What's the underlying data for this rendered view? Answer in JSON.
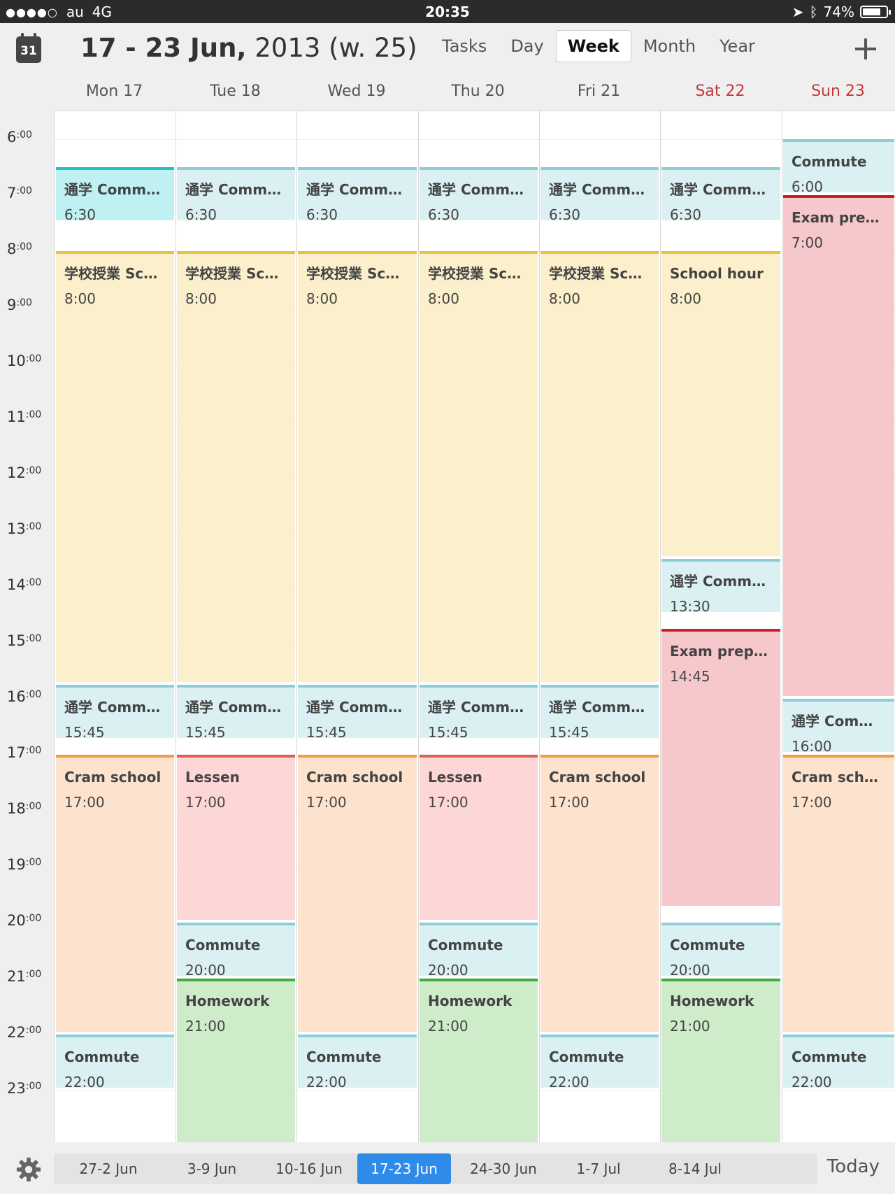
{
  "status_bar": {
    "carrier": "au",
    "network": "4G",
    "time": "20:35",
    "battery": "74%",
    "battery_level": 0.74
  },
  "header": {
    "calendar_icon_day": "31",
    "title_bold": "17 - 23 Jun,",
    "title_rest": " 2013 (w. 25)",
    "views": [
      "Tasks",
      "Day",
      "Week",
      "Month",
      "Year"
    ],
    "active_view": "Week"
  },
  "days": [
    {
      "label": "Mon 17",
      "weekend": false
    },
    {
      "label": "Tue 18",
      "weekend": false
    },
    {
      "label": "Wed 19",
      "weekend": false
    },
    {
      "label": "Thu 20",
      "weekend": false
    },
    {
      "label": "Fri 21",
      "weekend": false
    },
    {
      "label": "Sat 22",
      "weekend": true
    },
    {
      "label": "Sun 23",
      "weekend": true
    }
  ],
  "hours": [
    "6",
    "7",
    "8",
    "9",
    "10",
    "11",
    "12",
    "13",
    "14",
    "15",
    "16",
    "17",
    "18",
    "19",
    "20",
    "21",
    "22",
    "23"
  ],
  "hour_suffix": ":00",
  "events": [
    {
      "day": 0,
      "start": 6.5,
      "end": 7.5,
      "title": "通学 Commute",
      "time": "6:30",
      "kind": "commute-a"
    },
    {
      "day": 0,
      "start": 8,
      "end": 15.75,
      "title": "学校授業 Sch...",
      "time": "8:00",
      "kind": "school"
    },
    {
      "day": 0,
      "start": 15.75,
      "end": 16.75,
      "title": "通学 Commute",
      "time": "15:45",
      "kind": "commute"
    },
    {
      "day": 0,
      "start": 17,
      "end": 22,
      "title": "Cram school",
      "time": "17:00",
      "kind": "cram"
    },
    {
      "day": 0,
      "start": 22,
      "end": 23,
      "title": "Commute",
      "time": "22:00",
      "kind": "commute"
    },
    {
      "day": 1,
      "start": 6.5,
      "end": 7.5,
      "title": "通学 Commute",
      "time": "6:30",
      "kind": "commute"
    },
    {
      "day": 1,
      "start": 8,
      "end": 15.75,
      "title": "学校授業 Sch...",
      "time": "8:00",
      "kind": "school"
    },
    {
      "day": 1,
      "start": 15.75,
      "end": 16.75,
      "title": "通学 Commute",
      "time": "15:45",
      "kind": "commute"
    },
    {
      "day": 1,
      "start": 17,
      "end": 20,
      "title": "Lessen",
      "time": "17:00",
      "kind": "lessen"
    },
    {
      "day": 1,
      "start": 20,
      "end": 21,
      "title": "Commute",
      "time": "20:00",
      "kind": "commute"
    },
    {
      "day": 1,
      "start": 21,
      "end": 24,
      "title": "Homework",
      "time": "21:00",
      "kind": "homework"
    },
    {
      "day": 2,
      "start": 6.5,
      "end": 7.5,
      "title": "通学 Commute",
      "time": "6:30",
      "kind": "commute"
    },
    {
      "day": 2,
      "start": 8,
      "end": 15.75,
      "title": "学校授業 Sch...",
      "time": "8:00",
      "kind": "school"
    },
    {
      "day": 2,
      "start": 15.75,
      "end": 16.75,
      "title": "通学 Commute",
      "time": "15:45",
      "kind": "commute"
    },
    {
      "day": 2,
      "start": 17,
      "end": 22,
      "title": "Cram school",
      "time": "17:00",
      "kind": "cram"
    },
    {
      "day": 2,
      "start": 22,
      "end": 23,
      "title": "Commute",
      "time": "22:00",
      "kind": "commute"
    },
    {
      "day": 3,
      "start": 6.5,
      "end": 7.5,
      "title": "通学 Commute",
      "time": "6:30",
      "kind": "commute"
    },
    {
      "day": 3,
      "start": 8,
      "end": 15.75,
      "title": "学校授業 Sch...",
      "time": "8:00",
      "kind": "school"
    },
    {
      "day": 3,
      "start": 15.75,
      "end": 16.75,
      "title": "通学 Commute",
      "time": "15:45",
      "kind": "commute"
    },
    {
      "day": 3,
      "start": 17,
      "end": 20,
      "title": "Lessen",
      "time": "17:00",
      "kind": "lessen"
    },
    {
      "day": 3,
      "start": 20,
      "end": 21,
      "title": "Commute",
      "time": "20:00",
      "kind": "commute"
    },
    {
      "day": 3,
      "start": 21,
      "end": 24,
      "title": "Homework",
      "time": "21:00",
      "kind": "homework"
    },
    {
      "day": 4,
      "start": 6.5,
      "end": 7.5,
      "title": "通学 Commute",
      "time": "6:30",
      "kind": "commute"
    },
    {
      "day": 4,
      "start": 8,
      "end": 15.75,
      "title": "学校授業 Sch...",
      "time": "8:00",
      "kind": "school"
    },
    {
      "day": 4,
      "start": 15.75,
      "end": 16.75,
      "title": "通学 Commute",
      "time": "15:45",
      "kind": "commute"
    },
    {
      "day": 4,
      "start": 17,
      "end": 22,
      "title": "Cram school",
      "time": "17:00",
      "kind": "cram"
    },
    {
      "day": 4,
      "start": 22,
      "end": 23,
      "title": "Commute",
      "time": "22:00",
      "kind": "commute"
    },
    {
      "day": 5,
      "start": 6.5,
      "end": 7.5,
      "title": "通学 Commute",
      "time": "6:30",
      "kind": "commute"
    },
    {
      "day": 5,
      "start": 8,
      "end": 13.5,
      "title": "School hour",
      "time": "8:00",
      "kind": "school"
    },
    {
      "day": 5,
      "start": 13.5,
      "end": 14.5,
      "title": "通学 Commute",
      "time": "13:30",
      "kind": "commute"
    },
    {
      "day": 5,
      "start": 14.75,
      "end": 19.75,
      "title": "Exam prepar...",
      "time": "14:45",
      "kind": "exam"
    },
    {
      "day": 5,
      "start": 20,
      "end": 21,
      "title": "Commute",
      "time": "20:00",
      "kind": "commute"
    },
    {
      "day": 5,
      "start": 21,
      "end": 24,
      "title": "Homework",
      "time": "21:00",
      "kind": "homework"
    },
    {
      "day": 6,
      "start": 6,
      "end": 7,
      "title": "Commute",
      "time": "6:00",
      "kind": "commute"
    },
    {
      "day": 6,
      "start": 7,
      "end": 16,
      "title": "Exam prep s...",
      "time": "7:00",
      "kind": "exam"
    },
    {
      "day": 6,
      "start": 16,
      "end": 17,
      "title": "通学 Commute",
      "time": "16:00",
      "kind": "commute"
    },
    {
      "day": 6,
      "start": 17,
      "end": 22,
      "title": "Cram school",
      "time": "17:00",
      "kind": "cram"
    },
    {
      "day": 6,
      "start": 22,
      "end": 23,
      "title": "Commute",
      "time": "22:00",
      "kind": "commute"
    }
  ],
  "footer": {
    "weeks": [
      "27-2 Jun",
      "3-9 Jun",
      "10-16 Jun",
      "17-23 Jun",
      "24-30 Jun",
      "1-7 Jul",
      "8-14 Jul"
    ],
    "active_week": "17-23 Jun",
    "today_label": "Today"
  },
  "colors": {
    "accent_blue": "#2f8be8",
    "weekend_red": "#c23a3a",
    "commute": "#dbf0f3",
    "school": "#fcf0cc",
    "cram": "#fde3cd",
    "lessen": "#fdd6d6",
    "exam": "#f7c8cb",
    "homework": "#cfecca"
  }
}
